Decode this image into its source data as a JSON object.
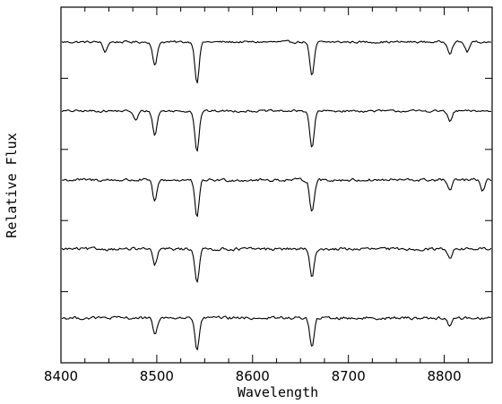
{
  "chart_data": {
    "type": "line",
    "title": "",
    "xlabel": "Wavelength",
    "ylabel": "Relative Flux",
    "xlim": [
      8400,
      8850
    ],
    "x_ticks": [
      "8400",
      "8500",
      "8600",
      "8700",
      "8800"
    ],
    "x_tick_values": [
      8400,
      8500,
      8600,
      8700,
      8800
    ],
    "legend": "none",
    "grid": false,
    "line_color": "#000000",
    "series": [
      {
        "offset": 4,
        "continuum": 1.0,
        "noise": 0.03,
        "absorption_lines": [
          {
            "center": 8446,
            "depth": 0.18
          },
          {
            "center": 8498,
            "depth": 0.45
          },
          {
            "center": 8542,
            "depth": 0.75
          },
          {
            "center": 8662,
            "depth": 0.65
          },
          {
            "center": 8806,
            "depth": 0.2
          },
          {
            "center": 8824,
            "depth": 0.18
          }
        ]
      },
      {
        "offset": 3,
        "continuum": 1.0,
        "noise": 0.03,
        "absorption_lines": [
          {
            "center": 8478,
            "depth": 0.18
          },
          {
            "center": 8498,
            "depth": 0.45
          },
          {
            "center": 8542,
            "depth": 0.75
          },
          {
            "center": 8662,
            "depth": 0.7
          },
          {
            "center": 8806,
            "depth": 0.2
          }
        ]
      },
      {
        "offset": 2,
        "continuum": 1.0,
        "noise": 0.04,
        "absorption_lines": [
          {
            "center": 8498,
            "depth": 0.4
          },
          {
            "center": 8542,
            "depth": 0.7
          },
          {
            "center": 8662,
            "depth": 0.6
          },
          {
            "center": 8806,
            "depth": 0.2
          },
          {
            "center": 8840,
            "depth": 0.2
          }
        ]
      },
      {
        "offset": 1,
        "continuum": 1.0,
        "noise": 0.04,
        "absorption_lines": [
          {
            "center": 8498,
            "depth": 0.3
          },
          {
            "center": 8542,
            "depth": 0.6
          },
          {
            "center": 8662,
            "depth": 0.55
          },
          {
            "center": 8806,
            "depth": 0.15
          }
        ]
      },
      {
        "offset": 0,
        "continuum": 1.0,
        "noise": 0.04,
        "absorption_lines": [
          {
            "center": 8498,
            "depth": 0.3
          },
          {
            "center": 8542,
            "depth": 0.6
          },
          {
            "center": 8662,
            "depth": 0.55
          },
          {
            "center": 8806,
            "depth": 0.15
          }
        ]
      }
    ]
  }
}
